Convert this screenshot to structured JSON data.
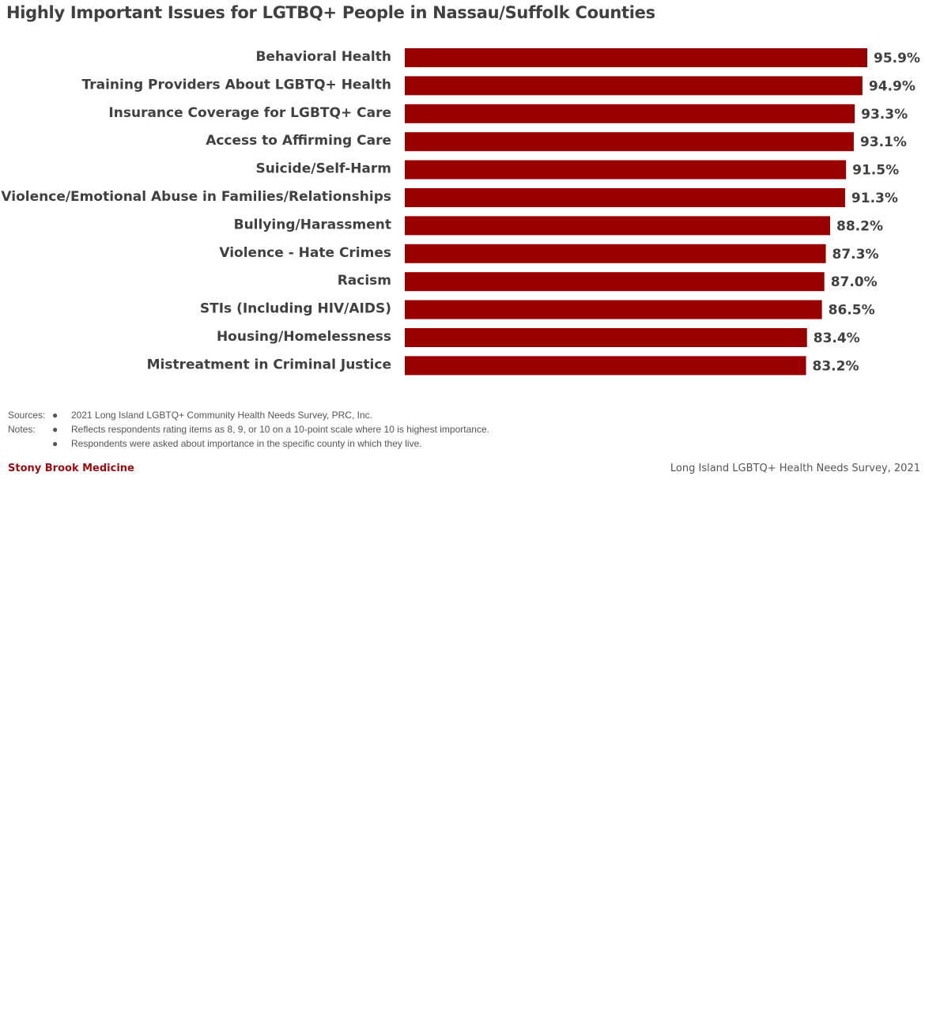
{
  "title": "Highly Important Issues for LGTBQ+ People in Nassau/Suffolk Counties",
  "colors": {
    "bar": "#990000",
    "brand": "#9b0b10",
    "text": "#404040"
  },
  "chart_data": {
    "type": "bar",
    "orientation": "horizontal",
    "title": "Highly Important Issues for LGTBQ+ People in Nassau/Suffolk Counties",
    "categories": [
      "Behavioral Health",
      "Training Providers About LGBTQ+ Health",
      "Insurance Coverage for LGBTQ+ Care",
      "Access to Affirming Care",
      "Suicide/Self-Harm",
      "Violence/Emotional Abuse in Families/Relationships",
      "Bullying/Harassment",
      "Violence - Hate Crimes",
      "Racism",
      "STIs (Including HIV/AIDS)",
      "Housing/Homelessness",
      "Mistreatment in Criminal Justice"
    ],
    "values": [
      95.9,
      94.9,
      93.3,
      93.1,
      91.5,
      91.3,
      88.2,
      87.3,
      87.0,
      86.5,
      83.4,
      83.2
    ],
    "value_labels": [
      "95.9%",
      "94.9%",
      "93.3%",
      "93.1%",
      "91.5%",
      "91.3%",
      "88.2%",
      "87.3%",
      "87.0%",
      "86.5%",
      "83.4%",
      "83.2%"
    ],
    "xlim": [
      0,
      100
    ],
    "grid": false,
    "legend": "none"
  },
  "notes": {
    "sources_label": "Sources:",
    "notes_label": "Notes:",
    "bullet": "●",
    "source_text": "2021 Long Island LGBTQ+ Community Health Needs Survey, PRC, Inc.",
    "note_1": "Reflects respondents rating items as 8, 9, or 10 on a 10-point scale where 10 is highest importance.",
    "note_2": "Respondents were asked about importance in the specific county in which they live."
  },
  "footer": {
    "brand": "Stony Brook Medicine",
    "survey": "Long Island LGBTQ+ Health Needs Survey, 2021"
  }
}
